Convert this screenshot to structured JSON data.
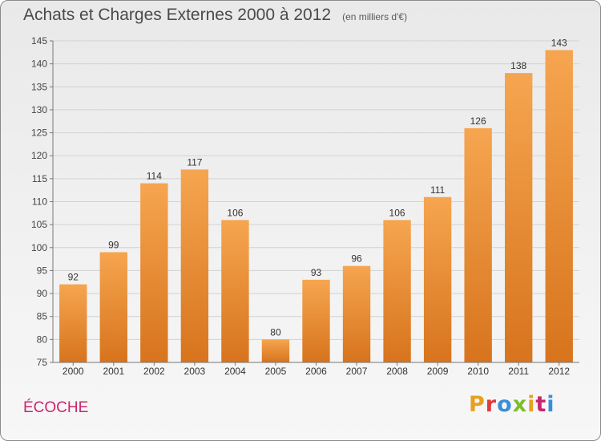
{
  "header": {
    "title": "Achats et Charges Externes 2000 à 2012",
    "units": "(en milliers d'€)"
  },
  "footer": {
    "commune": "ÉCOCHE",
    "logo_text": "Proxiti"
  },
  "colors": {
    "bar_top": "#f6a550",
    "bar_bottom": "#d7741d",
    "logo_letters": [
      "#e8a020",
      "#e03b3b",
      "#3a8fd8",
      "#7cbf2a",
      "#e8a020",
      "#c8256d",
      "#3a8fd8"
    ]
  },
  "chart_data": {
    "type": "bar",
    "categories": [
      "2000",
      "2001",
      "2002",
      "2003",
      "2004",
      "2005",
      "2006",
      "2007",
      "2008",
      "2009",
      "2010",
      "2011",
      "2012"
    ],
    "values": [
      92,
      99,
      114,
      117,
      106,
      80,
      93,
      96,
      106,
      111,
      126,
      138,
      143
    ],
    "ylim": [
      75,
      145
    ],
    "yticks": [
      75,
      80,
      85,
      90,
      95,
      100,
      105,
      110,
      115,
      120,
      125,
      130,
      135,
      140,
      145
    ],
    "grid": true,
    "data_labels": true
  }
}
